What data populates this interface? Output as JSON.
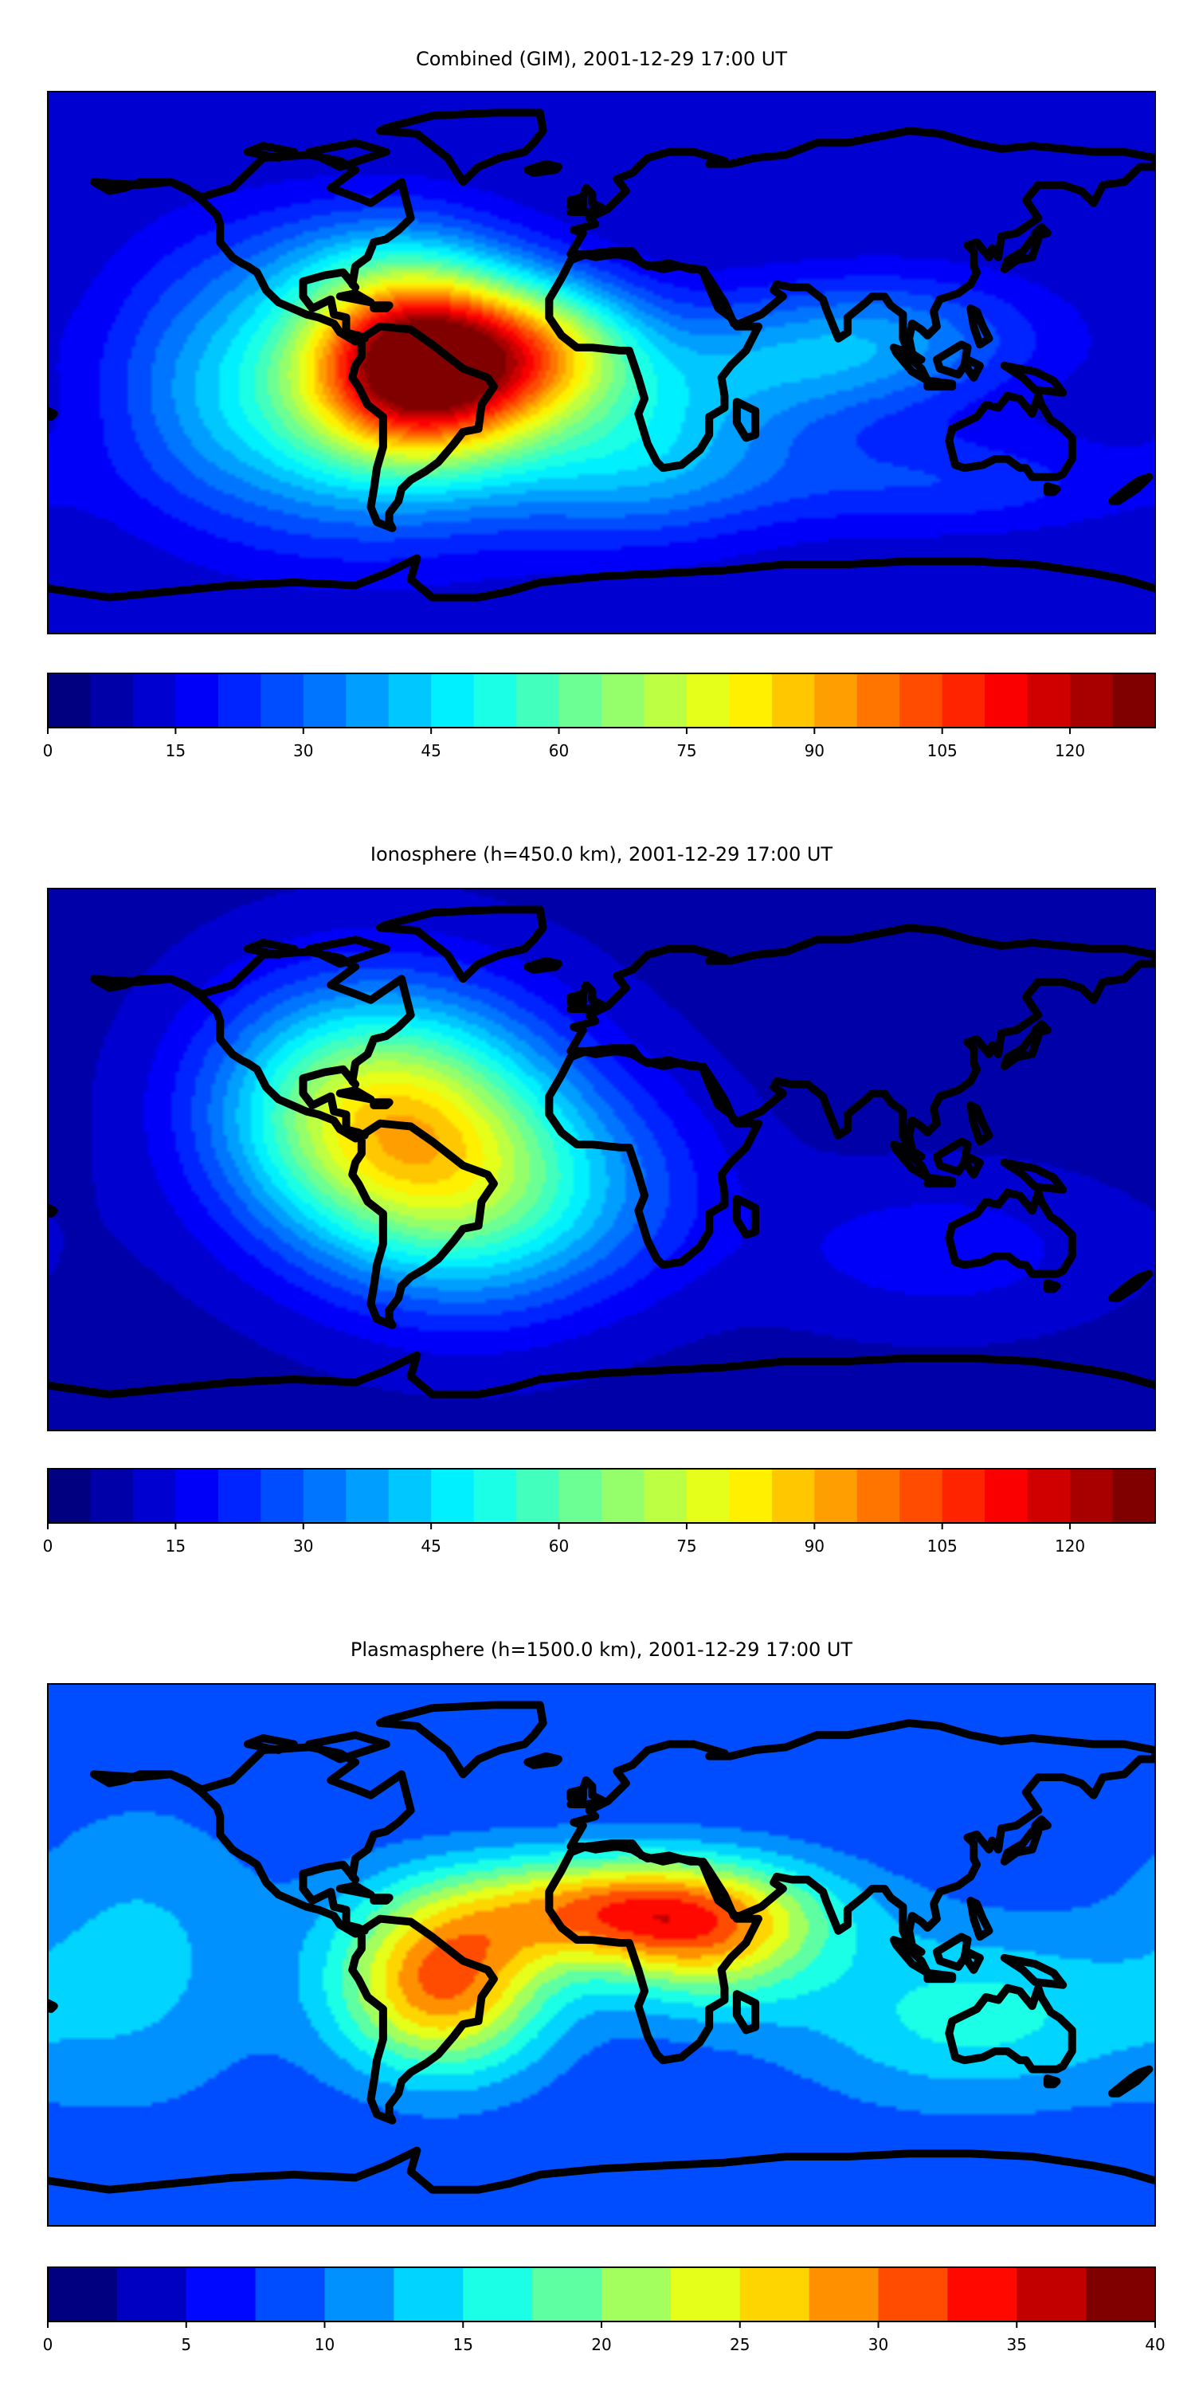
{
  "panels": [
    {
      "title": "Combined (GIM), 2001-12-29 17:00 UT",
      "colorbar": {
        "ticks": [
          "0",
          "15",
          "30",
          "45",
          "60",
          "75",
          "90",
          "105",
          "120"
        ],
        "tick_values": [
          0,
          15,
          30,
          45,
          60,
          75,
          90,
          105,
          120
        ],
        "min": 0,
        "max": 130,
        "levels": 26
      },
      "field": {
        "background": 10,
        "blobs": [
          {
            "lon": -57,
            "lat": 0,
            "amp": 108,
            "slon": 26,
            "slat": 20
          },
          {
            "lon": -15,
            "lat": 5,
            "amp": 40,
            "slon": 22,
            "slat": 16
          },
          {
            "lon": -80,
            "lat": -20,
            "amp": 35,
            "slon": 40,
            "slat": 28
          },
          {
            "lon": -75,
            "lat": 30,
            "amp": 20,
            "slon": 30,
            "slat": 18
          },
          {
            "lon": 10,
            "lat": -30,
            "amp": 30,
            "slon": 35,
            "slat": 20
          },
          {
            "lon": 60,
            "lat": 0,
            "amp": 22,
            "slon": 40,
            "slat": 16
          },
          {
            "lon": 100,
            "lat": 10,
            "amp": 15,
            "slon": 35,
            "slat": 15
          },
          {
            "lon": -130,
            "lat": 0,
            "amp": 15,
            "slon": 25,
            "slat": 30
          },
          {
            "lon": 110,
            "lat": -40,
            "amp": 14,
            "slon": 45,
            "slat": 12
          }
        ]
      }
    },
    {
      "title": "Ionosphere  (h=450.0 km), 2001-12-29 17:00 UT",
      "colorbar": {
        "ticks": [
          "0",
          "15",
          "30",
          "45",
          "60",
          "75",
          "90",
          "105",
          "120"
        ],
        "tick_values": [
          0,
          15,
          30,
          45,
          60,
          75,
          90,
          105,
          120
        ],
        "min": 0,
        "max": 130,
        "levels": 26
      },
      "field": {
        "background": 8,
        "blobs": [
          {
            "lon": -62,
            "lat": 10,
            "amp": 65,
            "slon": 35,
            "slat": 30
          },
          {
            "lon": -95,
            "lat": 20,
            "amp": 20,
            "slon": 30,
            "slat": 28
          },
          {
            "lon": -40,
            "lat": -20,
            "amp": 20,
            "slon": 30,
            "slat": 25
          },
          {
            "lon": 0,
            "lat": -10,
            "amp": 15,
            "slon": 30,
            "slat": 25
          },
          {
            "lon": 110,
            "lat": -30,
            "amp": 10,
            "slon": 40,
            "slat": 18
          }
        ]
      }
    },
    {
      "title": "Plasmasphere (h=1500.0 km), 2001-12-29 17:00 UT",
      "colorbar": {
        "ticks": [
          "0",
          "5",
          "10",
          "15",
          "20",
          "25",
          "30",
          "35",
          "40"
        ],
        "tick_values": [
          0,
          5,
          10,
          15,
          20,
          25,
          30,
          35,
          40
        ],
        "min": 0,
        "max": 40,
        "levels": 16
      },
      "field": {
        "background": 8,
        "blobs": [
          {
            "lon": -52,
            "lat": -10,
            "amp": 22,
            "slon": 24,
            "slat": 20
          },
          {
            "lon": 10,
            "lat": 15,
            "amp": 22,
            "slon": 40,
            "slat": 13
          },
          {
            "lon": 35,
            "lat": 0,
            "amp": 10,
            "slon": 25,
            "slat": 15
          },
          {
            "lon": 120,
            "lat": -20,
            "amp": 8,
            "slon": 40,
            "slat": 20
          },
          {
            "lon": -150,
            "lat": 0,
            "amp": 5,
            "slon": 30,
            "slat": 35
          }
        ]
      }
    }
  ]
}
